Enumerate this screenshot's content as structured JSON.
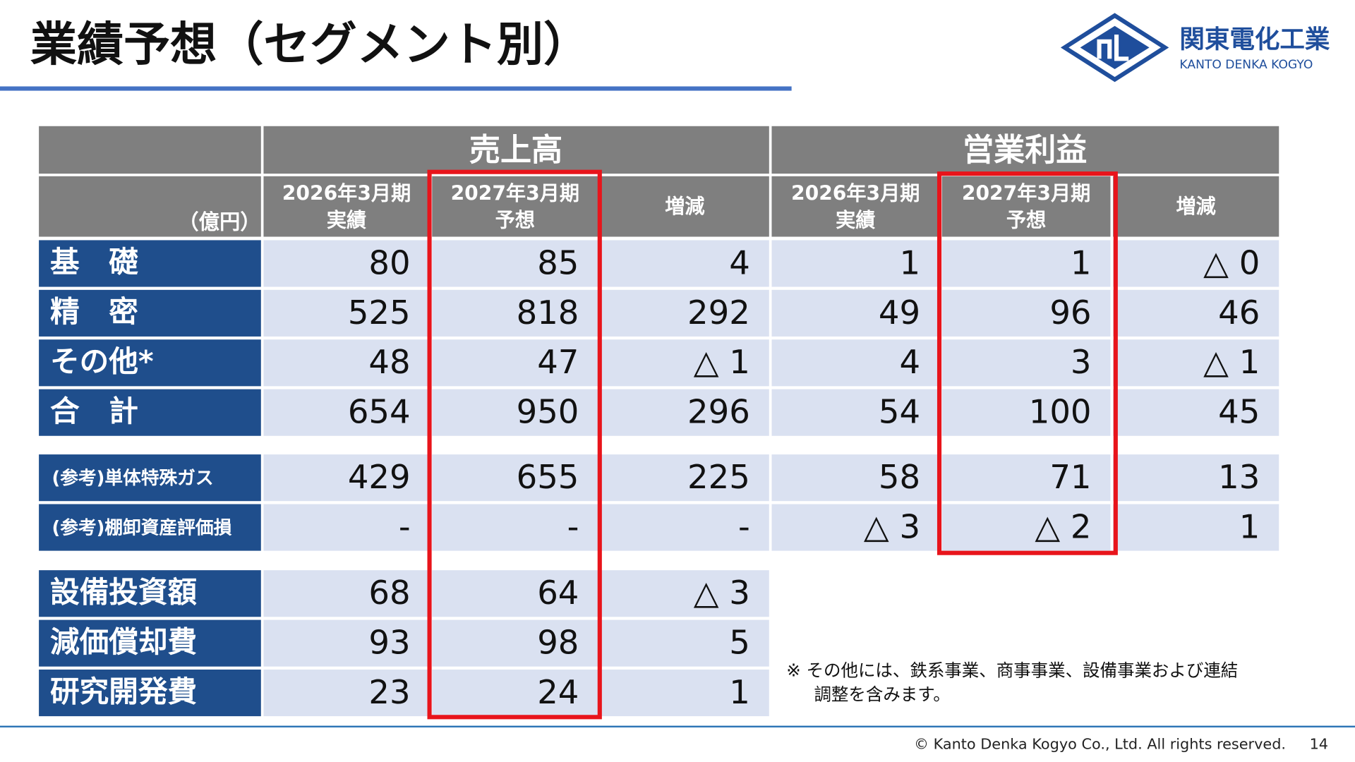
{
  "header": {
    "title": "業績予想（セグメント別）",
    "logo_name": "関東電化工業",
    "logo_sub": "KANTO DENKA KOGYO"
  },
  "table": {
    "unit": "（億円）",
    "groups": [
      "売上高",
      "営業利益"
    ],
    "columns": [
      [
        "2026年3月期",
        "実績"
      ],
      [
        "2027年3月期",
        "予想"
      ],
      [
        "増減"
      ],
      [
        "2026年3月期",
        "実績"
      ],
      [
        "2027年3月期",
        "予想"
      ],
      [
        "増減"
      ]
    ],
    "segments": [
      {
        "label": "基　礎",
        "cells": [
          80,
          85,
          4,
          1,
          1,
          "△ 0"
        ]
      },
      {
        "label": "精　密",
        "cells": [
          525,
          818,
          292,
          49,
          96,
          46
        ]
      },
      {
        "label": "その他*",
        "cells": [
          48,
          47,
          "△ 1",
          4,
          3,
          "△ 1"
        ]
      },
      {
        "label": "合　計",
        "cells": [
          654,
          950,
          296,
          54,
          100,
          45
        ]
      }
    ],
    "reference": [
      {
        "label": "(参考)単体特殊ガス",
        "cells": [
          429,
          655,
          225,
          58,
          71,
          13
        ]
      },
      {
        "label": "(参考)棚卸資産評価損",
        "cells": [
          "-",
          "-",
          "-",
          "△ 3",
          "△ 2",
          1
        ]
      }
    ],
    "investment": [
      {
        "label": "設備投資額",
        "cells": [
          68,
          64,
          "△ 3"
        ]
      },
      {
        "label": "減価償却費",
        "cells": [
          93,
          98,
          5
        ]
      },
      {
        "label": "研究開発費",
        "cells": [
          23,
          24,
          1
        ]
      }
    ]
  },
  "note": [
    "※ その他には、鉄系事業、商事事業、設備事業および連結",
    "調整を含みます。"
  ],
  "footer": {
    "copyright": "© Kanto Denka Kogyo Co., Ltd. All rights reserved.",
    "page": "14"
  }
}
